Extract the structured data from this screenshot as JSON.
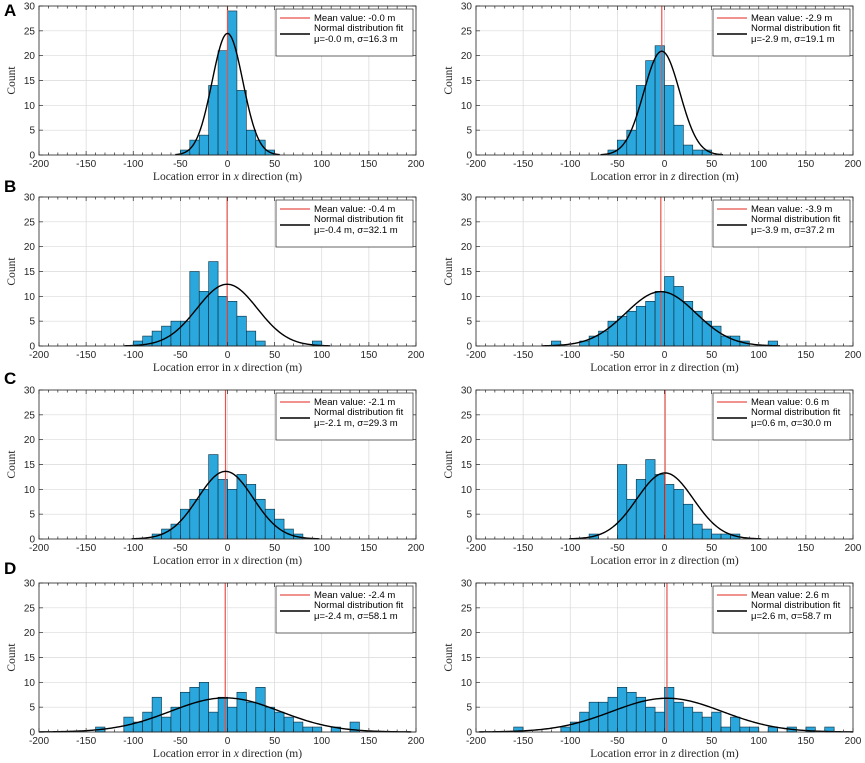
{
  "panel_letters": [
    "A",
    "B",
    "C",
    "D"
  ],
  "colors": {
    "bar_fill": "#2aa7dc",
    "bar_edge": "#0a2a3a",
    "mean_line": "#e8524a",
    "fit_line": "#000000",
    "grid": "#d9d9d9",
    "axis": "#262626"
  },
  "chart_data": [
    {
      "id": "A-x",
      "row": 0,
      "col": 0,
      "type": "bar",
      "xlabel_prefix": "Location error in ",
      "xlabel_var": "x",
      "xlabel_suffix": " direction (m)",
      "ylabel": "Count",
      "xlim": [
        -200,
        200
      ],
      "ylim": [
        0,
        30
      ],
      "xticks": [
        -200,
        -150,
        -100,
        -50,
        0,
        50,
        100,
        150,
        200
      ],
      "yticks": [
        0,
        5,
        10,
        15,
        20,
        25,
        30
      ],
      "grid": true,
      "legend_position": "top-right",
      "bin_width": 10,
      "bin_start": -50,
      "counts": [
        1,
        3,
        4,
        14,
        21,
        29,
        13,
        5,
        3,
        1
      ],
      "mean": -0.0,
      "mu": -0.0,
      "sigma": 16.3,
      "fit_n": 100,
      "legend": [
        "Mean value: -0.0 m",
        "Normal distribution fit",
        "μ=-0.0 m, σ=16.3 m"
      ]
    },
    {
      "id": "A-z",
      "row": 0,
      "col": 1,
      "type": "bar",
      "xlabel_prefix": "Location error in ",
      "xlabel_var": "z",
      "xlabel_suffix": " direction (m)",
      "ylabel": "Count",
      "xlim": [
        -200,
        200
      ],
      "ylim": [
        0,
        30
      ],
      "xticks": [
        -200,
        -150,
        -100,
        -50,
        0,
        50,
        100,
        150,
        200
      ],
      "yticks": [
        0,
        5,
        10,
        15,
        20,
        25,
        30
      ],
      "grid": true,
      "legend_position": "top-right",
      "bin_width": 10,
      "bin_start": -60,
      "counts": [
        1,
        3,
        5,
        14,
        19,
        22,
        14,
        6,
        2,
        1,
        1
      ],
      "mean": -2.9,
      "mu": -2.9,
      "sigma": 19.1,
      "fit_n": 100,
      "legend": [
        "Mean value: -2.9 m",
        "Normal distribution fit",
        "μ=-2.9 m, σ=19.1 m"
      ]
    },
    {
      "id": "B-x",
      "row": 1,
      "col": 0,
      "type": "bar",
      "xlabel_prefix": "Location error in ",
      "xlabel_var": "x",
      "xlabel_suffix": " direction (m)",
      "ylabel": "Count",
      "xlim": [
        -200,
        200
      ],
      "ylim": [
        0,
        30
      ],
      "xticks": [
        -200,
        -150,
        -100,
        -50,
        0,
        50,
        100,
        150,
        200
      ],
      "yticks": [
        0,
        5,
        10,
        15,
        20,
        25,
        30
      ],
      "grid": true,
      "legend_position": "top-right",
      "bin_width": 10,
      "bin_start": -100,
      "counts": [
        1,
        2,
        3,
        4,
        5,
        5,
        15,
        11,
        17,
        10,
        9,
        6,
        3,
        1,
        0,
        0,
        0,
        0,
        0,
        1
      ],
      "mean": -0.4,
      "mu": -0.4,
      "sigma": 32.1,
      "fit_n": 100,
      "legend": [
        "Mean value: -0.4 m",
        "Normal distribution fit",
        "μ=-0.4 m, σ=32.1 m"
      ]
    },
    {
      "id": "B-z",
      "row": 1,
      "col": 1,
      "type": "bar",
      "xlabel_prefix": "Location error in ",
      "xlabel_var": "z",
      "xlabel_suffix": " direction (m)",
      "ylabel": "Count",
      "xlim": [
        -200,
        200
      ],
      "ylim": [
        0,
        30
      ],
      "xticks": [
        -200,
        -150,
        -100,
        -50,
        0,
        50,
        100,
        150,
        200
      ],
      "yticks": [
        0,
        5,
        10,
        15,
        20,
        25,
        30
      ],
      "grid": true,
      "legend_position": "top-right",
      "bin_width": 10,
      "bin_start": -120,
      "counts": [
        1,
        0,
        0,
        1,
        2,
        3,
        5,
        6,
        7,
        8,
        9,
        11,
        14,
        12,
        9,
        7,
        5,
        4,
        2,
        2,
        1,
        0,
        0,
        1
      ],
      "mean": -3.9,
      "mu": -3.9,
      "sigma": 37.2,
      "fit_n": 102,
      "legend": [
        "Mean value: -3.9 m",
        "Normal distribution fit",
        "μ=-3.9 m, σ=37.2 m"
      ]
    },
    {
      "id": "C-x",
      "row": 2,
      "col": 0,
      "type": "bar",
      "xlabel_prefix": "Location error in ",
      "xlabel_var": "x",
      "xlabel_suffix": " direction (m)",
      "ylabel": "Count",
      "xlim": [
        -200,
        200
      ],
      "ylim": [
        0,
        30
      ],
      "xticks": [
        -200,
        -150,
        -100,
        -50,
        0,
        50,
        100,
        150,
        200
      ],
      "yticks": [
        0,
        5,
        10,
        15,
        20,
        25,
        30
      ],
      "grid": true,
      "legend_position": "top-right",
      "bin_width": 10,
      "bin_start": -80,
      "counts": [
        1,
        2,
        3,
        6,
        8,
        10,
        17,
        12,
        10,
        13,
        11,
        8,
        6,
        4,
        2,
        1
      ],
      "mean": -2.1,
      "mu": -2.1,
      "sigma": 29.3,
      "fit_n": 100,
      "legend": [
        "Mean value: -2.1 m",
        "Normal distribution fit",
        "μ=-2.1 m, σ=29.3 m"
      ]
    },
    {
      "id": "C-z",
      "row": 2,
      "col": 1,
      "type": "bar",
      "xlabel_prefix": "Location error in ",
      "xlabel_var": "z",
      "xlabel_suffix": " direction (m)",
      "ylabel": "Count",
      "xlim": [
        -200,
        200
      ],
      "ylim": [
        0,
        30
      ],
      "xticks": [
        -200,
        -150,
        -100,
        -50,
        0,
        50,
        100,
        150,
        200
      ],
      "yticks": [
        0,
        5,
        10,
        15,
        20,
        25,
        30
      ],
      "grid": true,
      "legend_position": "top-right",
      "bin_width": 10,
      "bin_start": -80,
      "counts": [
        1,
        0,
        0,
        15,
        8,
        12,
        16,
        13,
        11,
        10,
        7,
        3,
        2,
        1,
        1,
        1
      ],
      "mean": 0.6,
      "mu": 0.6,
      "sigma": 30.0,
      "fit_n": 100,
      "legend": [
        "Mean value: 0.6 m",
        "Normal distribution fit",
        "μ=0.6 m, σ=30.0 m"
      ]
    },
    {
      "id": "D-x",
      "row": 3,
      "col": 0,
      "type": "bar",
      "xlabel_prefix": "Location error in ",
      "xlabel_var": "x",
      "xlabel_suffix": " direction (m)",
      "ylabel": "Count",
      "xlim": [
        -200,
        200
      ],
      "ylim": [
        0,
        30
      ],
      "xticks": [
        -200,
        -150,
        -100,
        -50,
        0,
        50,
        100,
        150,
        200
      ],
      "yticks": [
        0,
        5,
        10,
        15,
        20,
        25,
        30
      ],
      "grid": true,
      "legend_position": "top-right",
      "bin_width": 10,
      "bin_start": -140,
      "counts": [
        1,
        0,
        0,
        3,
        2,
        4,
        7,
        3,
        5,
        8,
        9,
        10,
        4,
        7,
        5,
        8,
        6,
        9,
        5,
        4,
        3,
        2,
        1,
        1,
        0,
        1,
        0,
        2,
        0
      ],
      "mean": -2.4,
      "mu": -2.4,
      "sigma": 58.1,
      "fit_n": 100,
      "legend": [
        "Mean value: -2.4 m",
        "Normal distribution fit",
        "μ=-2.4 m, σ=58.1 m"
      ]
    },
    {
      "id": "D-z",
      "row": 3,
      "col": 1,
      "type": "bar",
      "xlabel_prefix": "Location error in ",
      "xlabel_var": "z",
      "xlabel_suffix": " direction (m)",
      "ylabel": "Count",
      "xlim": [
        -200,
        200
      ],
      "ylim": [
        0,
        30
      ],
      "xticks": [
        -200,
        -150,
        -100,
        -50,
        0,
        50,
        100,
        150,
        200
      ],
      "yticks": [
        0,
        5,
        10,
        15,
        20,
        25,
        30
      ],
      "grid": true,
      "legend_position": "top-right",
      "bin_width": 10,
      "bin_start": -160,
      "counts": [
        1,
        0,
        0,
        0,
        0,
        1,
        2,
        4,
        6,
        6,
        7,
        9,
        8,
        7,
        5,
        4,
        9,
        6,
        5,
        4,
        3,
        4,
        1,
        3,
        1,
        1,
        0,
        1,
        0,
        1,
        0,
        1,
        0,
        1
      ],
      "mean": 2.6,
      "mu": 2.6,
      "sigma": 58.7,
      "fit_n": 100,
      "legend": [
        "Mean value: 2.6 m",
        "Normal distribution fit",
        "μ=2.6 m, σ=58.7 m"
      ]
    }
  ]
}
